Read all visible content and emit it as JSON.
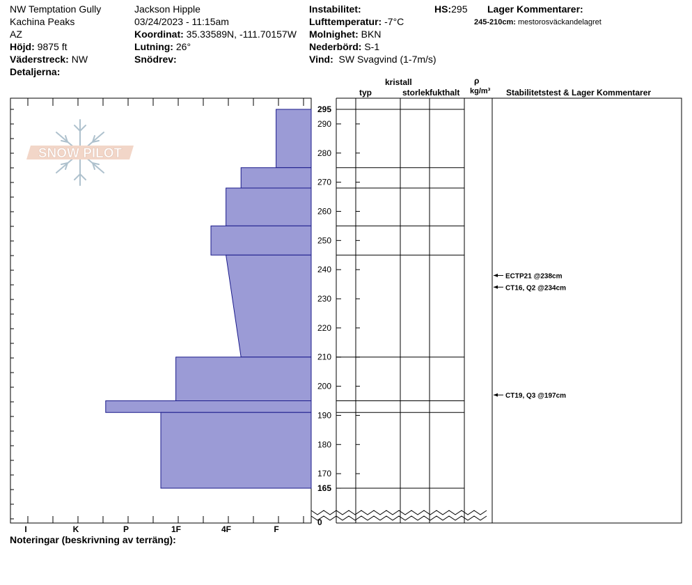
{
  "header": {
    "location": "NW Temptation Gully",
    "range": "Kachina Peaks",
    "state": "AZ",
    "elevation_label": "Höjd:",
    "elevation_value": "9875 ft",
    "aspect_label": "Väderstreck:",
    "aspect_value": "NW",
    "details_label": "Detaljerna:",
    "observer": "Jackson Hipple",
    "datetime": "03/24/2023 - 11:15am",
    "coord_label": "Koordinat:",
    "coord_value": "35.33589N, -111.70157W",
    "slope_label": "Lutning:",
    "slope_value": "26°",
    "drift_label": "Snödrev:",
    "instability_label": "Instabilitet:",
    "airtemp_label": "Lufttemperatur:",
    "airtemp_value": "-7°C",
    "cloud_label": "Molnighet:",
    "cloud_value": "BKN",
    "precip_label": "Nederbörd:",
    "precip_value": "S-1",
    "wind_label": "Vind:",
    "wind_value": "SW  Svagvind (1-7m/s)",
    "hs_label": "HS:",
    "hs_value": "295",
    "layer_comments_title": "Lager Kommentarer:",
    "layer_comment_range": "245-210cm:",
    "layer_comment_text": "mestorosväckandelagret"
  },
  "columns": {
    "crystal": "kristall",
    "type": "typ",
    "size": "storlek",
    "moisture": "fukthalt",
    "rho": "ρ",
    "density_unit": "kg/m³",
    "stability": "Stabilitetstest & Lager Kommentarer"
  },
  "footer": {
    "notes": "Noteringar (beskrivning av terräng):"
  },
  "logo_text": "SNOW PILOT",
  "colors": {
    "hardness_fill": "#9b9bd6",
    "hardness_stroke": "#1a1a8a"
  },
  "chart_data": {
    "type": "bar",
    "orientation": "horizontal",
    "description_axis": "height_cm",
    "hardness_scale": [
      "I",
      "K",
      "P",
      "1F",
      "4F",
      "F"
    ],
    "height_ticks": [
      295,
      290,
      280,
      270,
      260,
      250,
      240,
      230,
      220,
      210,
      200,
      190,
      180,
      170,
      165,
      0
    ],
    "hs": 295,
    "layers": [
      {
        "top": 295,
        "bottom": 275,
        "hardness_top": 0.7,
        "hardness_bottom": 0.7
      },
      {
        "top": 275,
        "bottom": 268,
        "hardness_top": 1.4,
        "hardness_bottom": 1.4
      },
      {
        "top": 268,
        "bottom": 255,
        "hardness_top": 1.7,
        "hardness_bottom": 1.7
      },
      {
        "top": 255,
        "bottom": 245,
        "hardness_top": 2.0,
        "hardness_bottom": 2.0
      },
      {
        "top": 245,
        "bottom": 210,
        "hardness_top": 1.7,
        "hardness_bottom": 1.4
      },
      {
        "top": 210,
        "bottom": 195,
        "hardness_top": 2.7,
        "hardness_bottom": 2.7
      },
      {
        "top": 195,
        "bottom": 191,
        "hardness_top": 4.1,
        "hardness_bottom": 4.1
      },
      {
        "top": 191,
        "bottom": 165,
        "hardness_top": 3.0,
        "hardness_bottom": 3.0
      }
    ],
    "layer_boundaries": [
      295,
      275,
      268,
      255,
      245,
      210,
      195,
      191,
      165
    ],
    "tests": [
      {
        "label": "ECTP21 @238cm",
        "height": 238
      },
      {
        "label": "CT16, Q2 @234cm",
        "height": 234
      },
      {
        "label": "CT19, Q3 @197cm",
        "height": 197
      }
    ]
  }
}
